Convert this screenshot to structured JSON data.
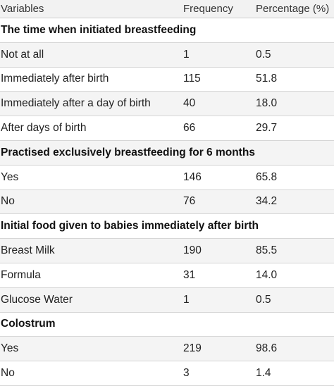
{
  "header": {
    "col1": "Variables",
    "col2": "Frequency",
    "col3": "Percentage (%)"
  },
  "rows": [
    {
      "kind": "section",
      "label": "The time when initiated breastfeeding"
    },
    {
      "kind": "data",
      "label": "Not at all",
      "frequency": "1",
      "percentage": "0.5"
    },
    {
      "kind": "data",
      "label": "Immediately after birth",
      "frequency": "115",
      "percentage": "51.8"
    },
    {
      "kind": "data",
      "label": "Immediately after a day of birth",
      "frequency": "40",
      "percentage": "18.0"
    },
    {
      "kind": "data",
      "label": "After days of birth",
      "frequency": "66",
      "percentage": "29.7"
    },
    {
      "kind": "section",
      "label": "Practised exclusively breastfeeding for 6 months"
    },
    {
      "kind": "data",
      "label": "Yes",
      "frequency": "146",
      "percentage": "65.8"
    },
    {
      "kind": "data",
      "label": "No",
      "frequency": "76",
      "percentage": "34.2"
    },
    {
      "kind": "section",
      "label": "Initial food given to babies immediately after birth"
    },
    {
      "kind": "data",
      "label": "Breast Milk",
      "frequency": "190",
      "percentage": "85.5"
    },
    {
      "kind": "data",
      "label": "Formula",
      "frequency": "31",
      "percentage": "14.0"
    },
    {
      "kind": "data",
      "label": "Glucose Water",
      "frequency": "1",
      "percentage": "0.5"
    },
    {
      "kind": "section",
      "label": "Colostrum"
    },
    {
      "kind": "data",
      "label": "Yes",
      "frequency": "219",
      "percentage": "98.6"
    },
    {
      "kind": "data",
      "label": "No",
      "frequency": "3",
      "percentage": "1.4"
    }
  ]
}
